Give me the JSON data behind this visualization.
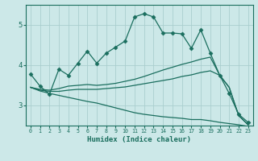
{
  "background_color": "#cce8e8",
  "grid_color": "#aacece",
  "line_color": "#1a6e5e",
  "xlabel": "Humidex (Indice chaleur)",
  "x_ticks": [
    0,
    1,
    2,
    3,
    4,
    5,
    6,
    7,
    8,
    9,
    10,
    11,
    12,
    13,
    14,
    15,
    16,
    17,
    18,
    19,
    20,
    21,
    22,
    23
  ],
  "ylim": [
    2.5,
    5.5
  ],
  "yticks": [
    3,
    4,
    5
  ],
  "series1_x": [
    0,
    1,
    2,
    3,
    4,
    5,
    6,
    7,
    8,
    9,
    10,
    11,
    12,
    13,
    14,
    15,
    16,
    17,
    18,
    19,
    20,
    21,
    22,
    23
  ],
  "series1_y": [
    3.78,
    3.48,
    3.28,
    3.9,
    3.75,
    4.05,
    4.35,
    4.05,
    4.3,
    4.45,
    4.6,
    5.2,
    5.28,
    5.2,
    4.8,
    4.8,
    4.78,
    4.42,
    4.88,
    4.3,
    3.75,
    3.3,
    2.78,
    2.58
  ],
  "series2_x": [
    0,
    1,
    2,
    3,
    4,
    5,
    6,
    7,
    8,
    9,
    10,
    11,
    12,
    13,
    14,
    15,
    16,
    17,
    18,
    19,
    20,
    21,
    22,
    23
  ],
  "series2_y": [
    3.45,
    3.4,
    3.38,
    3.42,
    3.48,
    3.5,
    3.52,
    3.5,
    3.52,
    3.55,
    3.6,
    3.65,
    3.72,
    3.8,
    3.88,
    3.95,
    4.02,
    4.08,
    4.15,
    4.2,
    3.75,
    3.45,
    2.75,
    2.52
  ],
  "series3_x": [
    0,
    1,
    2,
    3,
    4,
    5,
    6,
    7,
    8,
    9,
    10,
    11,
    12,
    13,
    14,
    15,
    16,
    17,
    18,
    19,
    20,
    21,
    22,
    23
  ],
  "series3_y": [
    3.45,
    3.38,
    3.35,
    3.35,
    3.38,
    3.4,
    3.4,
    3.4,
    3.42,
    3.44,
    3.46,
    3.5,
    3.54,
    3.58,
    3.62,
    3.66,
    3.72,
    3.76,
    3.82,
    3.86,
    3.75,
    3.45,
    2.75,
    2.52
  ],
  "series4_x": [
    0,
    1,
    2,
    3,
    4,
    5,
    6,
    7,
    8,
    9,
    10,
    11,
    12,
    13,
    14,
    15,
    16,
    17,
    18,
    19,
    20,
    21,
    22,
    23
  ],
  "series4_y": [
    3.45,
    3.36,
    3.3,
    3.25,
    3.2,
    3.15,
    3.1,
    3.06,
    3.0,
    2.94,
    2.88,
    2.82,
    2.78,
    2.75,
    2.72,
    2.7,
    2.68,
    2.65,
    2.65,
    2.62,
    2.58,
    2.55,
    2.52,
    2.48
  ]
}
